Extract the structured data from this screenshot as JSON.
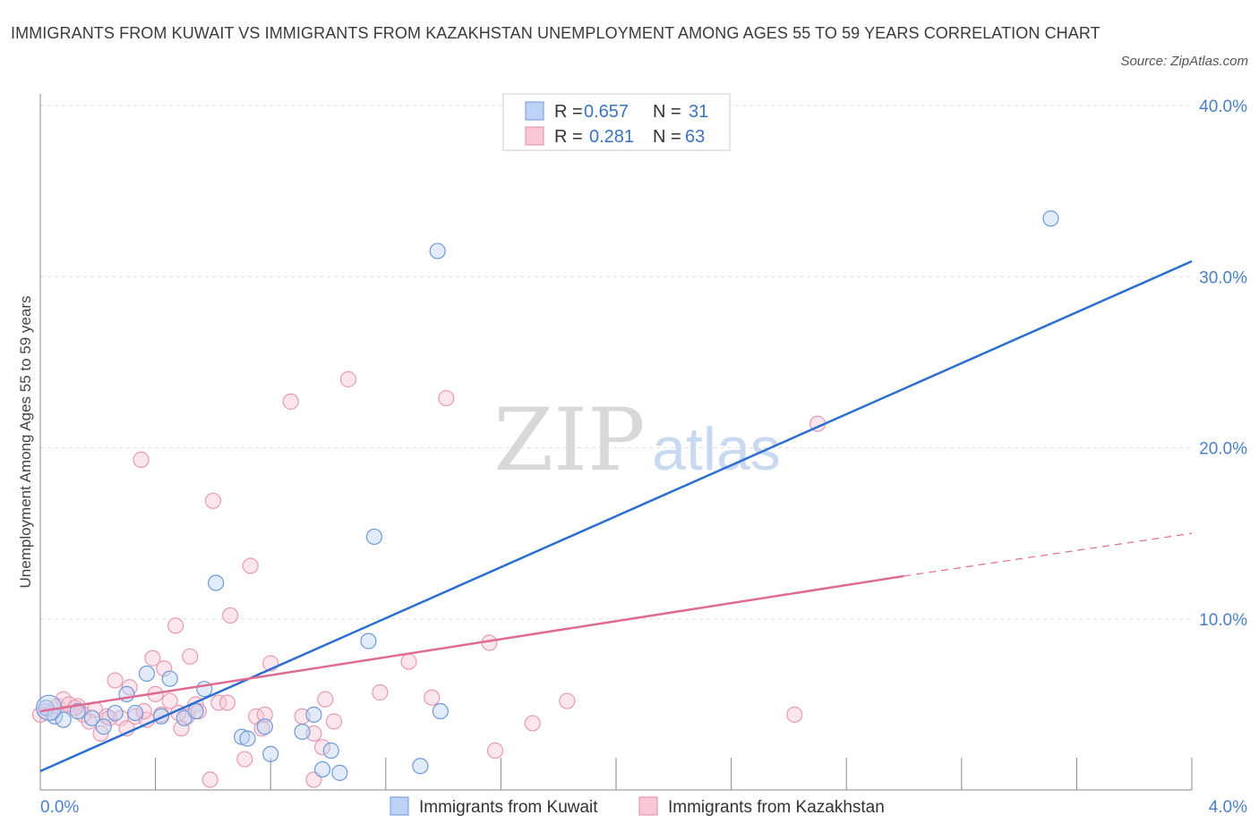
{
  "title": "IMMIGRANTS FROM KUWAIT VS IMMIGRANTS FROM KAZAKHSTAN UNEMPLOYMENT AMONG AGES 55 TO 59 YEARS CORRELATION CHART",
  "source": "Source: ZipAtlas.com",
  "watermark": {
    "zip": "ZIP",
    "atlas": "atlas"
  },
  "colors": {
    "kuwait": "#a9c6f2",
    "kuwait_line": "#2a6fd0",
    "kazakhstan": "#f4b6c8",
    "kazakhstan_line": "#e06a93",
    "axis_text": "#4a7fc8"
  },
  "legend": {
    "r_label": "R =",
    "n_label": "N =",
    "kuwait": {
      "r": "0.657",
      "n": "31"
    },
    "kazakhstan": {
      "r": "0.281",
      "n": "63"
    }
  },
  "chart_data": {
    "type": "scatter",
    "title": "IMMIGRANTS FROM KUWAIT VS IMMIGRANTS FROM KAZAKHSTAN UNEMPLOYMENT AMONG AGES 55 TO 59 YEARS CORRELATION CHART",
    "xlabel": "",
    "ylabel": "Unemployment Among Ages 55 to 59 years",
    "xlim": [
      0,
      4.0
    ],
    "ylim": [
      0,
      40.0
    ],
    "x_tick_labels": [
      "0.0%",
      "4.0%"
    ],
    "y_tick_values": [
      10,
      20,
      30,
      40
    ],
    "y_tick_labels": [
      "10.0%",
      "20.0%",
      "30.0%",
      "40.0%"
    ],
    "grid": true,
    "series": [
      {
        "name": "Immigrants from Kuwait",
        "color": "#a9c6f2",
        "points": [
          [
            0.02,
            4.8
          ],
          [
            0.05,
            4.3
          ],
          [
            0.08,
            4.1
          ],
          [
            0.13,
            4.6
          ],
          [
            0.18,
            4.2
          ],
          [
            0.22,
            3.7
          ],
          [
            0.26,
            4.5
          ],
          [
            0.3,
            5.6
          ],
          [
            0.33,
            4.5
          ],
          [
            0.37,
            6.8
          ],
          [
            0.42,
            4.3
          ],
          [
            0.45,
            6.5
          ],
          [
            0.5,
            4.2
          ],
          [
            0.54,
            4.6
          ],
          [
            0.57,
            5.9
          ],
          [
            0.61,
            12.1
          ],
          [
            0.7,
            3.1
          ],
          [
            0.78,
            3.7
          ],
          [
            0.8,
            2.1
          ],
          [
            0.91,
            3.4
          ],
          [
            0.95,
            4.4
          ],
          [
            0.98,
            1.2
          ],
          [
            1.01,
            2.3
          ],
          [
            1.04,
            1.0
          ],
          [
            1.16,
            14.8
          ],
          [
            1.14,
            8.7
          ],
          [
            1.32,
            1.4
          ],
          [
            1.39,
            4.6
          ],
          [
            1.38,
            31.5
          ],
          [
            3.51,
            33.4
          ],
          [
            0.72,
            3.0
          ]
        ],
        "trend": {
          "x": [
            0.0,
            4.0
          ],
          "y": [
            1.1,
            30.9
          ]
        }
      },
      {
        "name": "Immigrants from Kazakhstan",
        "color": "#f4b6c8",
        "points": [
          [
            0.02,
            4.6
          ],
          [
            0.04,
            4.5
          ],
          [
            0.06,
            4.9
          ],
          [
            0.08,
            5.3
          ],
          [
            0.1,
            5.0
          ],
          [
            0.13,
            4.9
          ],
          [
            0.15,
            4.4
          ],
          [
            0.17,
            4.0
          ],
          [
            0.19,
            4.7
          ],
          [
            0.21,
            3.3
          ],
          [
            0.23,
            4.3
          ],
          [
            0.26,
            6.4
          ],
          [
            0.28,
            4.2
          ],
          [
            0.3,
            3.6
          ],
          [
            0.31,
            6.0
          ],
          [
            0.33,
            4.3
          ],
          [
            0.35,
            19.3
          ],
          [
            0.37,
            4.1
          ],
          [
            0.39,
            7.7
          ],
          [
            0.4,
            5.6
          ],
          [
            0.42,
            4.4
          ],
          [
            0.43,
            7.1
          ],
          [
            0.45,
            5.2
          ],
          [
            0.47,
            9.6
          ],
          [
            0.49,
            3.6
          ],
          [
            0.51,
            4.3
          ],
          [
            0.52,
            7.8
          ],
          [
            0.54,
            5.0
          ],
          [
            0.55,
            4.6
          ],
          [
            0.59,
            0.6
          ],
          [
            0.6,
            16.9
          ],
          [
            0.62,
            5.1
          ],
          [
            0.66,
            10.2
          ],
          [
            0.71,
            1.8
          ],
          [
            0.73,
            13.1
          ],
          [
            0.75,
            4.3
          ],
          [
            0.77,
            3.6
          ],
          [
            0.78,
            4.4
          ],
          [
            0.8,
            7.4
          ],
          [
            0.87,
            22.7
          ],
          [
            0.91,
            4.3
          ],
          [
            0.95,
            3.3
          ],
          [
            0.95,
            0.6
          ],
          [
            0.98,
            2.5
          ],
          [
            0.99,
            5.3
          ],
          [
            1.02,
            4.0
          ],
          [
            1.07,
            24.0
          ],
          [
            1.18,
            5.7
          ],
          [
            1.28,
            7.5
          ],
          [
            1.36,
            5.4
          ],
          [
            1.41,
            22.9
          ],
          [
            1.56,
            8.6
          ],
          [
            1.58,
            2.3
          ],
          [
            1.71,
            3.9
          ],
          [
            1.83,
            5.2
          ],
          [
            2.62,
            4.4
          ],
          [
            2.7,
            21.4
          ],
          [
            0.0,
            4.4
          ],
          [
            0.12,
            4.8
          ],
          [
            0.24,
            4.2
          ],
          [
            0.36,
            4.6
          ],
          [
            0.48,
            4.5
          ],
          [
            0.65,
            5.1
          ]
        ],
        "trend": {
          "x": [
            0.0,
            3.0
          ],
          "y": [
            4.6,
            12.5
          ]
        },
        "trend_extension": {
          "x": [
            3.0,
            4.0
          ],
          "y": [
            12.5,
            15.0
          ]
        }
      }
    ]
  }
}
